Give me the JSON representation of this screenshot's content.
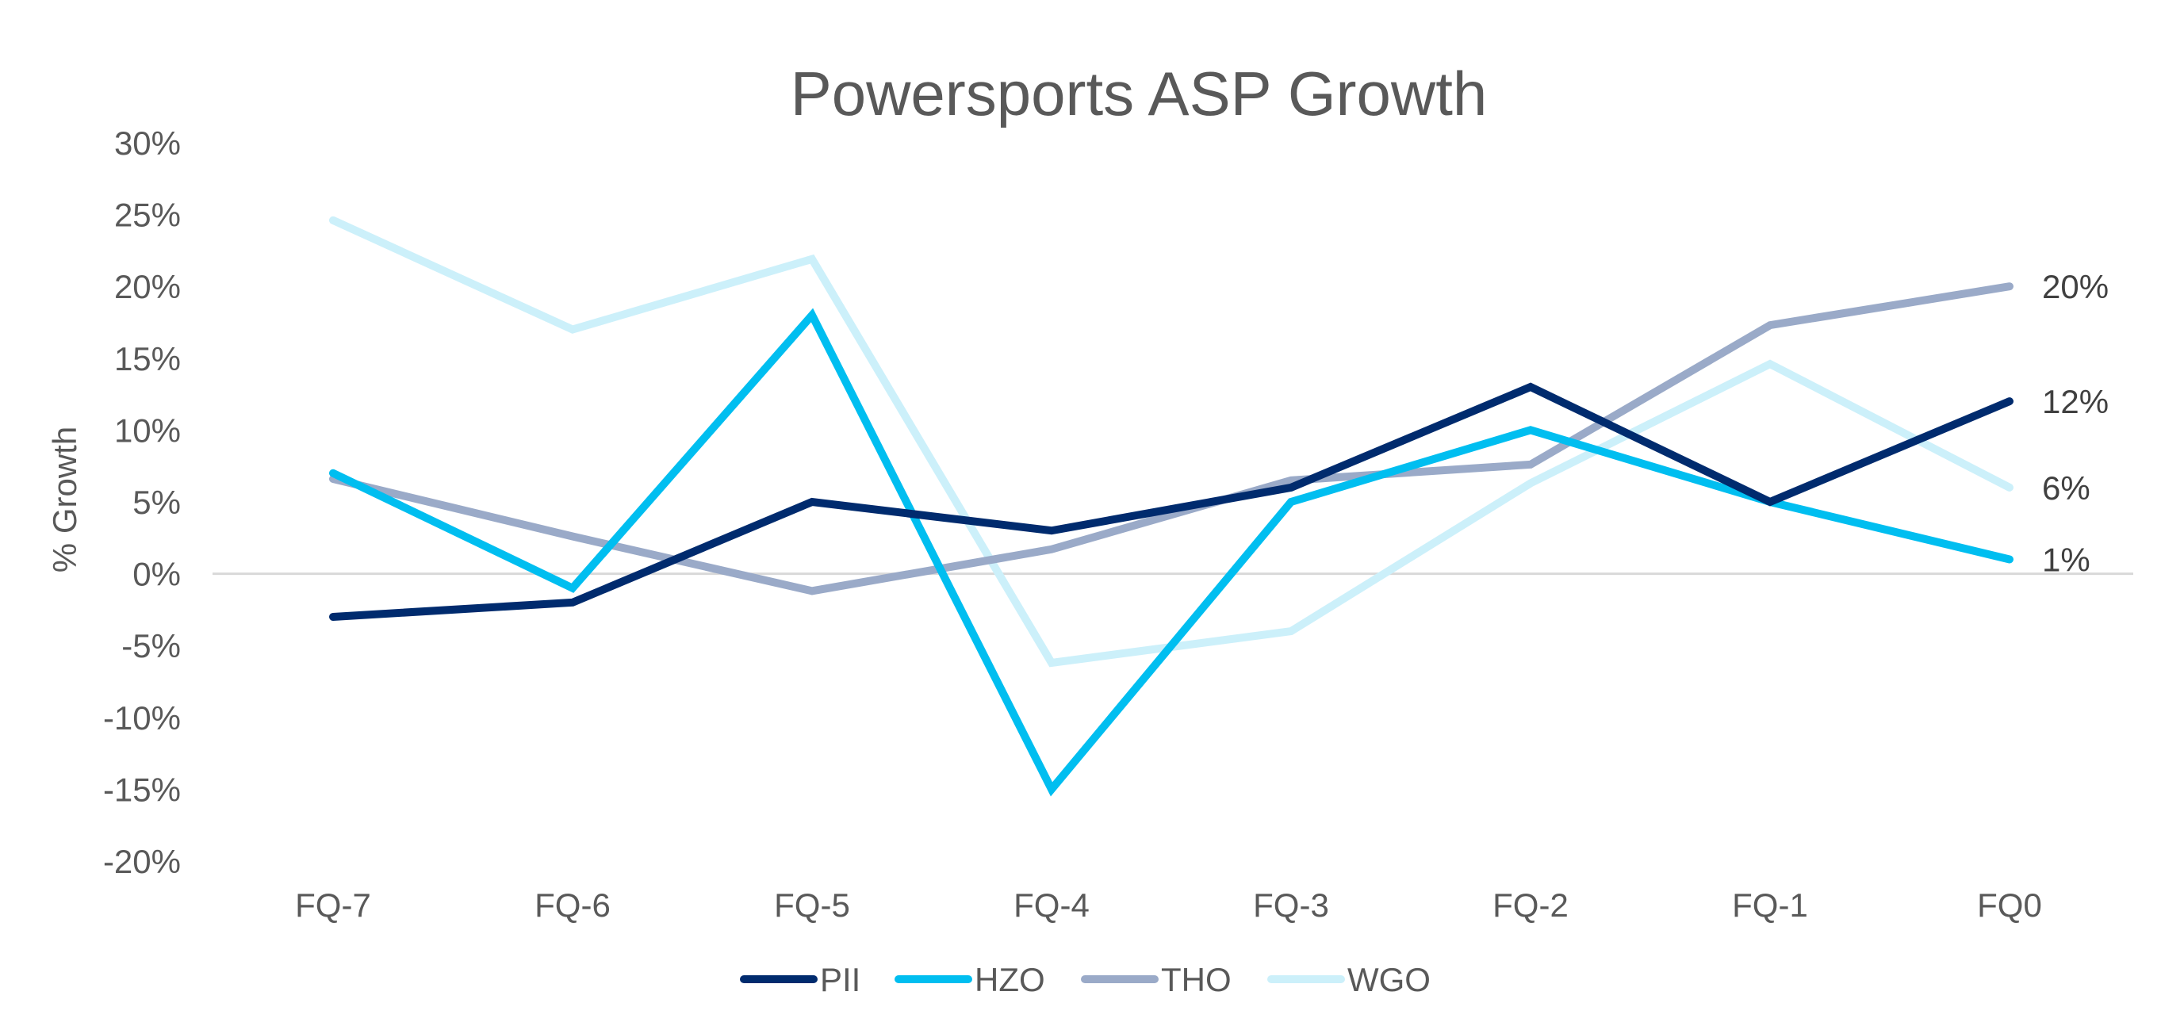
{
  "chart_data": {
    "type": "line",
    "title": "Powersports ASP Growth",
    "xlabel": "",
    "ylabel": "% Growth",
    "categories": [
      "FQ-7",
      "FQ-6",
      "FQ-5",
      "FQ-4",
      "FQ-3",
      "FQ-2",
      "FQ-1",
      "FQ0"
    ],
    "ylim": [
      -20,
      30
    ],
    "yticks": [
      30,
      25,
      20,
      15,
      10,
      5,
      0,
      -5,
      -10,
      -15,
      -20
    ],
    "ytick_labels": [
      "30%",
      "25%",
      "20%",
      "15%",
      "10%",
      "5%",
      "0%",
      "-5%",
      "-10%",
      "-15%",
      "-20%"
    ],
    "grid": false,
    "zero_line": true,
    "legend_position": "bottom",
    "series": [
      {
        "name": "PII",
        "color": "#002B6E",
        "values": [
          -3,
          -2,
          5,
          3,
          6,
          13,
          5,
          12
        ],
        "end_label": "12%"
      },
      {
        "name": "HZO",
        "color": "#00BEF0",
        "values": [
          7,
          -1,
          18,
          -15,
          5,
          10,
          5,
          1
        ],
        "end_label": "1%"
      },
      {
        "name": "THO",
        "color": "#9AAAC8",
        "values": [
          6.6,
          2.6,
          -1.2,
          1.7,
          6.5,
          7.6,
          17.3,
          20
        ],
        "end_label": "20%"
      },
      {
        "name": "WGO",
        "color": "#CCF0FA",
        "values": [
          24.6,
          17,
          21.9,
          -6.2,
          -4,
          6.3,
          14.6,
          6
        ],
        "end_label": "6%"
      }
    ]
  }
}
